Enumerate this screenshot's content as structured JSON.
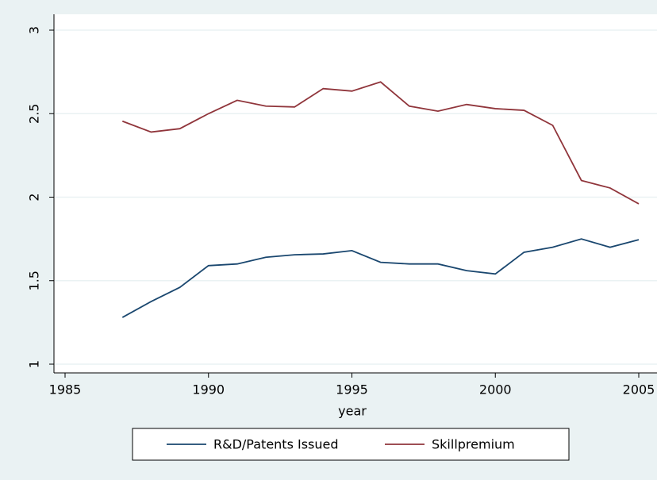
{
  "chart_data": {
    "type": "line",
    "x_label": "year",
    "x": [
      1987,
      1988,
      1989,
      1990,
      1991,
      1992,
      1993,
      1994,
      1995,
      1996,
      1997,
      1998,
      1999,
      2000,
      2001,
      2002,
      2003,
      2004,
      2005
    ],
    "series": [
      {
        "name": "R&D/Patents Issued",
        "color": "#1a476f",
        "values": [
          1.28,
          1.375,
          1.46,
          1.59,
          1.6,
          1.64,
          1.655,
          1.66,
          1.68,
          1.61,
          1.6,
          1.6,
          1.56,
          1.54,
          1.67,
          1.7,
          1.75,
          1.7,
          1.745
        ]
      },
      {
        "name": "Skillpremium",
        "color": "#90353b",
        "values": [
          2.455,
          2.39,
          2.41,
          2.5,
          2.58,
          2.545,
          2.54,
          2.65,
          2.635,
          2.69,
          2.545,
          2.515,
          2.555,
          2.53,
          2.52,
          2.43,
          2.1,
          2.055,
          1.96
        ]
      }
    ],
    "xlim": [
      1985,
      2005
    ],
    "xticks": [
      1985,
      1990,
      1995,
      2000,
      2005
    ],
    "ylim": [
      1,
      3
    ],
    "yticks": [
      1,
      1.5,
      2,
      2.5,
      3
    ],
    "grid": true,
    "legend": "bottom"
  }
}
